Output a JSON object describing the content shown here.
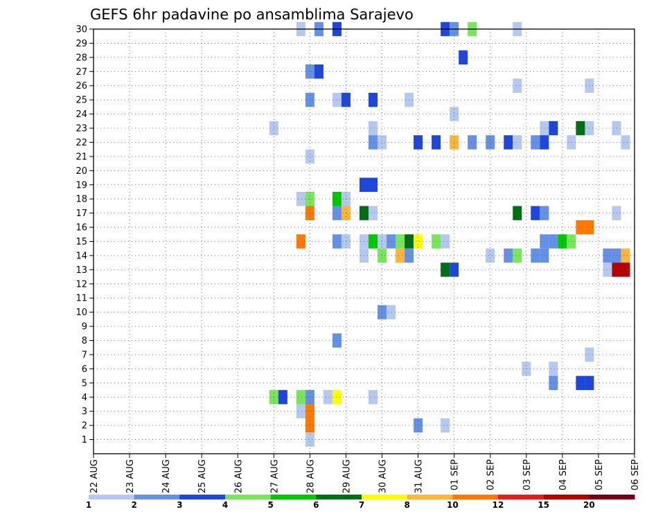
{
  "chart_data": {
    "type": "heatmap",
    "title": "GEFS 6hr padavine po ansamblima Sarajevo",
    "xlabel": "",
    "ylabel": "",
    "x_ticks": [
      "22 AUG",
      "23 AUG",
      "24 AUG",
      "25 AUG",
      "26 AUG",
      "27 AUG",
      "28 AUG",
      "29 AUG",
      "30 AUG",
      "31 AUG",
      "01 SEP",
      "02 SEP",
      "03 SEP",
      "04 SEP",
      "05 SEP",
      "06 SEP"
    ],
    "x_unit": "6-hour steps from 22 AUG 00Z",
    "xlim": [
      0,
      60
    ],
    "y_ticks": [
      1,
      2,
      3,
      4,
      5,
      6,
      7,
      8,
      9,
      10,
      11,
      12,
      13,
      14,
      15,
      16,
      17,
      18,
      19,
      20,
      21,
      22,
      23,
      24,
      25,
      26,
      27,
      28,
      29,
      30
    ],
    "ylim": [
      0,
      30
    ],
    "grid": true,
    "legend": {
      "placement": "bottom",
      "labels": [
        "1",
        "2",
        "3",
        "4",
        "5",
        "6",
        "7",
        "8",
        "10",
        "12",
        "15",
        "20"
      ],
      "colors": [
        "#b4c8f0",
        "#6490e6",
        "#1e46dc",
        "#78e65a",
        "#00c800",
        "#006e14",
        "#ffff00",
        "#ffb43c",
        "#ff7800",
        "#e61e1e",
        "#b40000",
        "#780014"
      ]
    },
    "color_levels": [
      {
        "level": 1,
        "color": "#b4c8f0"
      },
      {
        "level": 2,
        "color": "#6490e6"
      },
      {
        "level": 3,
        "color": "#1e46dc"
      },
      {
        "level": 4,
        "color": "#78e65a"
      },
      {
        "level": 5,
        "color": "#00c800"
      },
      {
        "level": 6,
        "color": "#006e14"
      },
      {
        "level": 7,
        "color": "#ffff00"
      },
      {
        "level": 8,
        "color": "#ffb43c"
      },
      {
        "level": 9,
        "color": "#ff7800"
      },
      {
        "level": 10,
        "color": "#e61e1e"
      },
      {
        "level": 11,
        "color": "#b40000"
      }
    ],
    "cells": [
      {
        "t": 23,
        "m": 30,
        "level": 1
      },
      {
        "t": 25,
        "m": 30,
        "level": 2
      },
      {
        "t": 27,
        "m": 30,
        "level": 3
      },
      {
        "t": 39,
        "m": 30,
        "level": 3
      },
      {
        "t": 40,
        "m": 30,
        "level": 2
      },
      {
        "t": 42,
        "m": 30,
        "level": 4
      },
      {
        "t": 47,
        "m": 30,
        "level": 1
      },
      {
        "t": 41,
        "m": 28,
        "level": 3
      },
      {
        "t": 24,
        "m": 27,
        "level": 2
      },
      {
        "t": 25,
        "m": 27,
        "level": 3
      },
      {
        "t": 47,
        "m": 26,
        "level": 1
      },
      {
        "t": 55,
        "m": 26,
        "level": 1
      },
      {
        "t": 24,
        "m": 25,
        "level": 2
      },
      {
        "t": 27,
        "m": 25,
        "level": 1
      },
      {
        "t": 28,
        "m": 25,
        "level": 3
      },
      {
        "t": 31,
        "m": 25,
        "level": 3
      },
      {
        "t": 35,
        "m": 25,
        "level": 1
      },
      {
        "t": 40,
        "m": 24,
        "level": 1
      },
      {
        "t": 20,
        "m": 23,
        "level": 1
      },
      {
        "t": 31,
        "m": 23,
        "level": 1
      },
      {
        "t": 50,
        "m": 23,
        "level": 1
      },
      {
        "t": 51,
        "m": 23,
        "level": 3
      },
      {
        "t": 54,
        "m": 23,
        "level": 6
      },
      {
        "t": 55,
        "m": 23,
        "level": 1
      },
      {
        "t": 58,
        "m": 23,
        "level": 1
      },
      {
        "t": 31,
        "m": 22,
        "level": 2
      },
      {
        "t": 32,
        "m": 22,
        "level": 1
      },
      {
        "t": 36,
        "m": 22,
        "level": 3
      },
      {
        "t": 38,
        "m": 22,
        "level": 3
      },
      {
        "t": 40,
        "m": 22,
        "level": 8
      },
      {
        "t": 42,
        "m": 22,
        "level": 2
      },
      {
        "t": 44,
        "m": 22,
        "level": 2
      },
      {
        "t": 46,
        "m": 22,
        "level": 3
      },
      {
        "t": 47,
        "m": 22,
        "level": 1
      },
      {
        "t": 49,
        "m": 22,
        "level": 2
      },
      {
        "t": 50,
        "m": 22,
        "level": 3
      },
      {
        "t": 53,
        "m": 22,
        "level": 1
      },
      {
        "t": 59,
        "m": 22,
        "level": 1
      },
      {
        "t": 24,
        "m": 21,
        "level": 1
      },
      {
        "t": 30,
        "m": 19,
        "level": 3
      },
      {
        "t": 31,
        "m": 19,
        "level": 3
      },
      {
        "t": 23,
        "m": 18,
        "level": 1
      },
      {
        "t": 24,
        "m": 18,
        "level": 4
      },
      {
        "t": 27,
        "m": 18,
        "level": 5
      },
      {
        "t": 28,
        "m": 18,
        "level": 1
      },
      {
        "t": 24,
        "m": 17,
        "level": 9
      },
      {
        "t": 27,
        "m": 17,
        "level": 2
      },
      {
        "t": 28,
        "m": 17,
        "level": 8
      },
      {
        "t": 30,
        "m": 17,
        "level": 6
      },
      {
        "t": 31,
        "m": 17,
        "level": 1
      },
      {
        "t": 47,
        "m": 17,
        "level": 6
      },
      {
        "t": 49,
        "m": 17,
        "level": 3
      },
      {
        "t": 50,
        "m": 17,
        "level": 2
      },
      {
        "t": 58,
        "m": 17,
        "level": 1
      },
      {
        "t": 54,
        "m": 16,
        "level": 9
      },
      {
        "t": 55,
        "m": 16,
        "level": 9
      },
      {
        "t": 23,
        "m": 15,
        "level": 9
      },
      {
        "t": 27,
        "m": 15,
        "level": 2
      },
      {
        "t": 28,
        "m": 15,
        "level": 1
      },
      {
        "t": 30,
        "m": 15,
        "level": 1
      },
      {
        "t": 31,
        "m": 15,
        "level": 5
      },
      {
        "t": 32,
        "m": 15,
        "level": 1
      },
      {
        "t": 33,
        "m": 15,
        "level": 2
      },
      {
        "t": 34,
        "m": 15,
        "level": 4
      },
      {
        "t": 35,
        "m": 15,
        "level": 6
      },
      {
        "t": 36,
        "m": 15,
        "level": 7
      },
      {
        "t": 38,
        "m": 15,
        "level": 4
      },
      {
        "t": 39,
        "m": 15,
        "level": 1
      },
      {
        "t": 50,
        "m": 15,
        "level": 2
      },
      {
        "t": 51,
        "m": 15,
        "level": 2
      },
      {
        "t": 52,
        "m": 15,
        "level": 5
      },
      {
        "t": 53,
        "m": 15,
        "level": 4
      },
      {
        "t": 30,
        "m": 14,
        "level": 1
      },
      {
        "t": 32,
        "m": 14,
        "level": 4
      },
      {
        "t": 34,
        "m": 14,
        "level": 8
      },
      {
        "t": 35,
        "m": 14,
        "level": 2
      },
      {
        "t": 44,
        "m": 14,
        "level": 1
      },
      {
        "t": 46,
        "m": 14,
        "level": 2
      },
      {
        "t": 47,
        "m": 14,
        "level": 4
      },
      {
        "t": 49,
        "m": 14,
        "level": 2
      },
      {
        "t": 50,
        "m": 14,
        "level": 2
      },
      {
        "t": 57,
        "m": 14,
        "level": 2
      },
      {
        "t": 58,
        "m": 14,
        "level": 2
      },
      {
        "t": 59,
        "m": 14,
        "level": 8
      },
      {
        "t": 39,
        "m": 13,
        "level": 6
      },
      {
        "t": 40,
        "m": 13,
        "level": 3
      },
      {
        "t": 57,
        "m": 13,
        "level": 1
      },
      {
        "t": 58,
        "m": 13,
        "level": 11
      },
      {
        "t": 59,
        "m": 13,
        "level": 11
      },
      {
        "t": 32,
        "m": 10,
        "level": 2
      },
      {
        "t": 33,
        "m": 10,
        "level": 1
      },
      {
        "t": 27,
        "m": 8,
        "level": 2
      },
      {
        "t": 55,
        "m": 7,
        "level": 1
      },
      {
        "t": 48,
        "m": 6,
        "level": 1
      },
      {
        "t": 51,
        "m": 6,
        "level": 1
      },
      {
        "t": 51,
        "m": 5,
        "level": 2
      },
      {
        "t": 54,
        "m": 5,
        "level": 3
      },
      {
        "t": 55,
        "m": 5,
        "level": 3
      },
      {
        "t": 20,
        "m": 4,
        "level": 4
      },
      {
        "t": 21,
        "m": 4,
        "level": 3
      },
      {
        "t": 23,
        "m": 4,
        "level": 4
      },
      {
        "t": 24,
        "m": 4,
        "level": 2
      },
      {
        "t": 26,
        "m": 4,
        "level": 1
      },
      {
        "t": 27,
        "m": 4,
        "level": 7
      },
      {
        "t": 31,
        "m": 4,
        "level": 1
      },
      {
        "t": 23,
        "m": 3,
        "level": 1
      },
      {
        "t": 24,
        "m": 3,
        "level": 9
      },
      {
        "t": 24,
        "m": 2,
        "level": 9
      },
      {
        "t": 36,
        "m": 2,
        "level": 2
      },
      {
        "t": 39,
        "m": 2,
        "level": 1
      },
      {
        "t": 24,
        "m": 1,
        "level": 1
      }
    ]
  }
}
